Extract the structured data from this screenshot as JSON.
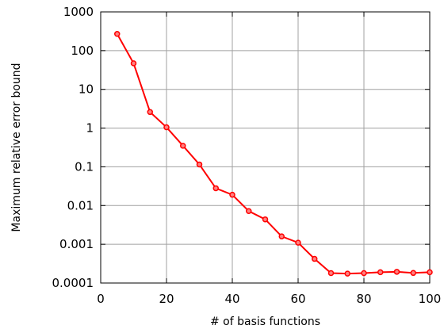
{
  "chart_data": {
    "type": "line",
    "title": "",
    "xlabel": "# of basis functions",
    "ylabel": "Maximum relative error bound",
    "xlim": [
      0,
      100
    ],
    "ylim": [
      0.0001,
      1000
    ],
    "yscale": "log",
    "grid": true,
    "legend": "none",
    "x_ticks": [
      0,
      20,
      40,
      60,
      80,
      100
    ],
    "x_tick_labels": [
      "0",
      "20",
      "40",
      "60",
      "80",
      "100"
    ],
    "y_ticks": [
      0.0001,
      0.001,
      0.01,
      0.1,
      1,
      10,
      100,
      1000
    ],
    "y_tick_labels": [
      "0.0001",
      "0.001",
      "0.01",
      "0.1",
      "1",
      "10",
      "100",
      "1000"
    ],
    "series": [
      {
        "color": "#ff0000",
        "marker": "circle",
        "x": [
          5,
          10,
          15,
          20,
          25,
          30,
          35,
          40,
          45,
          50,
          55,
          60,
          65,
          70,
          75,
          80,
          85,
          90,
          95,
          100
        ],
        "y": [
          270,
          47,
          2.6,
          1.05,
          0.35,
          0.115,
          0.028,
          0.019,
          0.0072,
          0.0044,
          0.0016,
          0.0011,
          0.00042,
          0.00018,
          0.000175,
          0.00018,
          0.00019,
          0.000195,
          0.000182,
          0.00019
        ]
      }
    ]
  }
}
